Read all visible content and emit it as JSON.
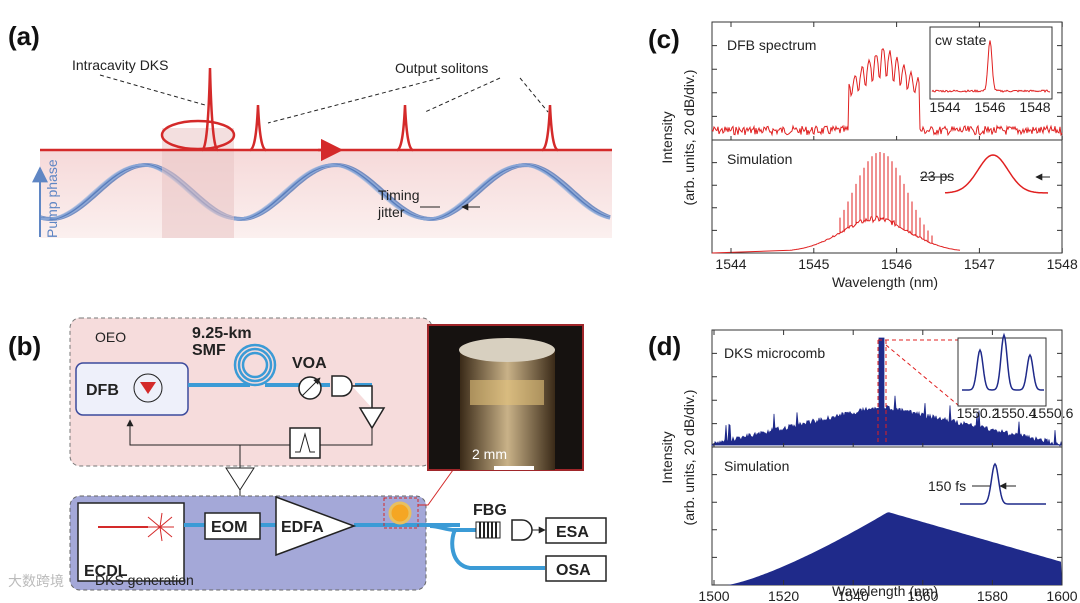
{
  "panel_a": {
    "label": "(a)",
    "intracavity": "Intracavity DKS",
    "output": "Output solitons",
    "pump": "Pump phase",
    "timing": "Timing",
    "jitter": "jitter"
  },
  "panel_b": {
    "label": "(b)",
    "oeo": "OEO",
    "fiber": "9.25-km",
    "smf": "SMF",
    "voa": "VOA",
    "dfb": "DFB",
    "ecdl": "ECDL",
    "eom": "EOM",
    "edfa": "EDFA",
    "fbg": "FBG",
    "esa": "ESA",
    "osa": "OSA",
    "generation": "DKS generation",
    "scale": "2 mm"
  },
  "panel_c": {
    "label": "(c)",
    "top": "DFB spectrum",
    "inset_title": "cw state",
    "inset_ticks": [
      "1544",
      "1546",
      "1548"
    ],
    "bottom": "Simulation",
    "pulse": "23 ps",
    "ylabel": [
      "Intensity",
      "(arb. units, 20 dB/div.)"
    ],
    "xlabel": "Wavelength (nm)",
    "xticks": [
      "1544",
      "1545",
      "1546",
      "1547",
      "1548"
    ]
  },
  "panel_d": {
    "label": "(d)",
    "top": "DKS microcomb",
    "inset_ticks": [
      "1550.2",
      "1550.4",
      "1550.6"
    ],
    "bottom": "Simulation",
    "pulse": "150 fs",
    "ylabel": [
      "Intensity",
      "(arb. units, 20 dB/div.)"
    ],
    "xlabel": "Wavelength (nm)",
    "xticks": [
      "1500",
      "1520",
      "1540",
      "1560",
      "1580",
      "1600"
    ]
  },
  "watermark": "大数跨境"
}
